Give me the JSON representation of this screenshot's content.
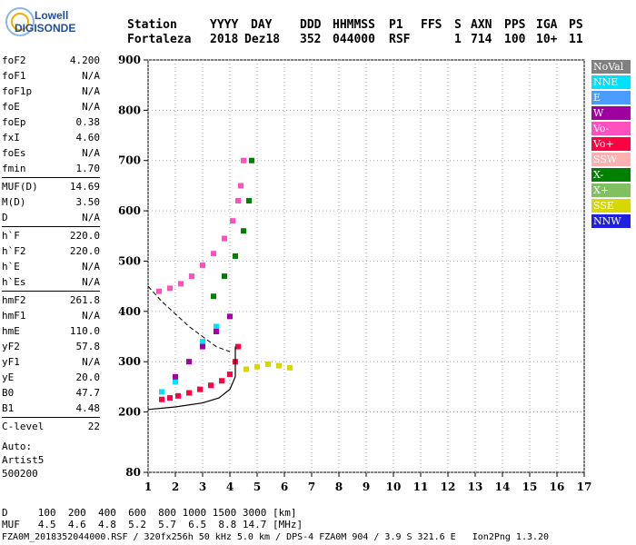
{
  "logo": {
    "line1": "Lowell",
    "line2": "DIGISONDE"
  },
  "header": {
    "labels": [
      "Station",
      "YYYY",
      "DAY",
      "DDD",
      "HHMMSS",
      "P1",
      "FFS",
      "S",
      "AXN",
      "PPS",
      "IGA",
      "PS"
    ],
    "values": [
      "Fortaleza",
      "2018",
      "Dez18",
      "352",
      "044000",
      "RSF",
      "1",
      "714",
      "100",
      "10+",
      "11"
    ]
  },
  "params": {
    "group1": [
      {
        "k": "foF2",
        "v": "4.200"
      },
      {
        "k": "foF1",
        "v": "N/A"
      },
      {
        "k": "foF1p",
        "v": "N/A"
      },
      {
        "k": "foE",
        "v": "N/A"
      },
      {
        "k": "foEp",
        "v": "0.38"
      },
      {
        "k": "fxI",
        "v": "4.60"
      },
      {
        "k": "foEs",
        "v": "N/A"
      },
      {
        "k": "fmin",
        "v": "1.70"
      }
    ],
    "group2": [
      {
        "k": "MUF(D)",
        "v": "14.69"
      },
      {
        "k": "M(D)",
        "v": "3.50"
      },
      {
        "k": "D",
        "v": "N/A"
      }
    ],
    "group3": [
      {
        "k": "h`F",
        "v": "220.0"
      },
      {
        "k": "h`F2",
        "v": "220.0"
      },
      {
        "k": "h`E",
        "v": "N/A"
      },
      {
        "k": "h`Es",
        "v": "N/A"
      }
    ],
    "group4": [
      {
        "k": "hmF2",
        "v": "261.8"
      },
      {
        "k": "hmF1",
        "v": "N/A"
      },
      {
        "k": "hmE",
        "v": "110.0"
      },
      {
        "k": "yF2",
        "v": "57.8"
      },
      {
        "k": "yF1",
        "v": "N/A"
      },
      {
        "k": "yE",
        "v": "20.0"
      },
      {
        "k": "B0",
        "v": "47.7"
      },
      {
        "k": "B1",
        "v": "4.48"
      }
    ],
    "group5": [
      {
        "k": "C-level",
        "v": "22"
      }
    ]
  },
  "auto": {
    "line1": "Auto:",
    "line2": "Artist5",
    "line3": "500200"
  },
  "legend": [
    {
      "label": "NoVal",
      "color": "#808080"
    },
    {
      "label": "NNE",
      "color": "#00e0ff"
    },
    {
      "label": "E",
      "color": "#4a9cff"
    },
    {
      "label": "W",
      "color": "#a000a0"
    },
    {
      "label": "Vo-",
      "color": "#ff50c0"
    },
    {
      "label": "Vo+",
      "color": "#ff0040"
    },
    {
      "label": "SSW",
      "color": "#ffb0b0"
    },
    {
      "label": "X-",
      "color": "#008000"
    },
    {
      "label": "X+",
      "color": "#80c060"
    },
    {
      "label": "SSE",
      "color": "#d8d800"
    },
    {
      "label": "NNW",
      "color": "#2020e0"
    }
  ],
  "bottom": {
    "d_row": "D     100  200  400  600  800 1000 1500 3000 [km]",
    "muf_row": "MUF   4.5  4.6  4.8  5.2  5.7  6.5  8.8 14.7 [MHz]",
    "footer": "FZA0M_2018352044000.RSF / 320fx256h 50 kHz 5.0 km / DPS-4 FZA0M 904 / 3.9 S 321.6 E   Ion2Png 1.3.20"
  },
  "chart_data": {
    "type": "scatter",
    "title": "",
    "xlabel": "",
    "ylabel": "",
    "xlim": [
      1,
      17
    ],
    "ylim": [
      80,
      900
    ],
    "x_ticks": [
      1,
      2,
      3,
      4,
      5,
      6,
      7,
      8,
      9,
      10,
      11,
      12,
      13,
      14,
      15,
      16,
      17
    ],
    "y_ticks": [
      80,
      200,
      300,
      400,
      500,
      600,
      700,
      800,
      900
    ],
    "grid": "dotted",
    "series": [
      {
        "name": "Vo+",
        "x": [
          1.5,
          1.8,
          2.1,
          2.5,
          2.9,
          3.3,
          3.7,
          4.0,
          4.2,
          4.3
        ],
        "y": [
          225,
          228,
          232,
          238,
          245,
          253,
          262,
          275,
          300,
          330
        ]
      },
      {
        "name": "Vo-",
        "x": [
          1.4,
          1.8,
          2.2,
          2.6,
          3.0,
          3.4,
          3.8,
          4.1,
          4.3,
          4.4,
          4.5
        ],
        "y": [
          440,
          446,
          455,
          470,
          492,
          515,
          545,
          580,
          620,
          650,
          700
        ]
      },
      {
        "name": "X-",
        "x": [
          3.4,
          3.8,
          4.2,
          4.5,
          4.7,
          4.8
        ],
        "y": [
          430,
          470,
          510,
          560,
          620,
          700
        ]
      },
      {
        "name": "SSE",
        "x": [
          4.6,
          5.0,
          5.4,
          5.8,
          6.2
        ],
        "y": [
          285,
          290,
          295,
          292,
          288
        ]
      },
      {
        "name": "NNE",
        "x": [
          1.5,
          2.0,
          2.5,
          3.0,
          3.5
        ],
        "y": [
          240,
          260,
          300,
          340,
          370
        ]
      },
      {
        "name": "W",
        "x": [
          2.0,
          2.5,
          3.0,
          3.5,
          4.0
        ],
        "y": [
          270,
          300,
          330,
          360,
          390
        ]
      }
    ],
    "profile": {
      "x": [
        1.0,
        2.0,
        3.0,
        3.6,
        4.0,
        4.2,
        4.2
      ],
      "y": [
        205,
        210,
        218,
        228,
        245,
        270,
        330
      ]
    },
    "dashed_curve": {
      "x": [
        1.0,
        1.5,
        2.0,
        2.5,
        3.0,
        3.5,
        4.0
      ],
      "y": [
        450,
        420,
        395,
        370,
        350,
        330,
        320
      ]
    }
  }
}
